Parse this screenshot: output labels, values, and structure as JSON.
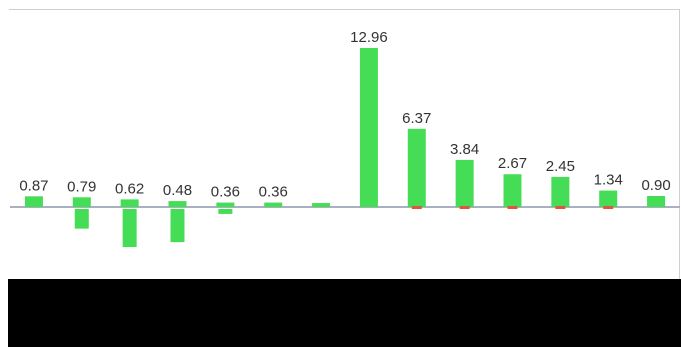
{
  "chart_data": {
    "type": "bar",
    "title": "",
    "xlabel": "",
    "ylabel": "",
    "ylim": [
      -3.3,
      12.96
    ],
    "grid": false,
    "legend": "none",
    "colors": {
      "positive": "#44dd55",
      "negative": "#44dd55",
      "baseline": "#aab0c0",
      "accent_marker": "#e05540"
    },
    "categories": [
      "",
      "",
      "",
      "",
      "",
      "",
      "",
      "",
      "",
      "",
      "",
      "",
      "",
      ""
    ],
    "values": [
      0.87,
      0.79,
      0.62,
      0.48,
      0.36,
      0.36,
      0.32,
      12.96,
      6.37,
      3.84,
      2.67,
      2.45,
      1.34,
      0.9
    ],
    "value_labels": [
      "0.87",
      "0.79",
      "0.62",
      "0.48",
      "0.36",
      "0.36",
      "",
      "12.96",
      "6.37",
      "3.84",
      "2.67",
      "2.45",
      "1.34",
      "0.90"
    ],
    "negative_stub_values": [
      0,
      -1.6,
      -3.1,
      -2.7,
      -0.4,
      0,
      0,
      0,
      0,
      0,
      0,
      0,
      0,
      0
    ]
  }
}
